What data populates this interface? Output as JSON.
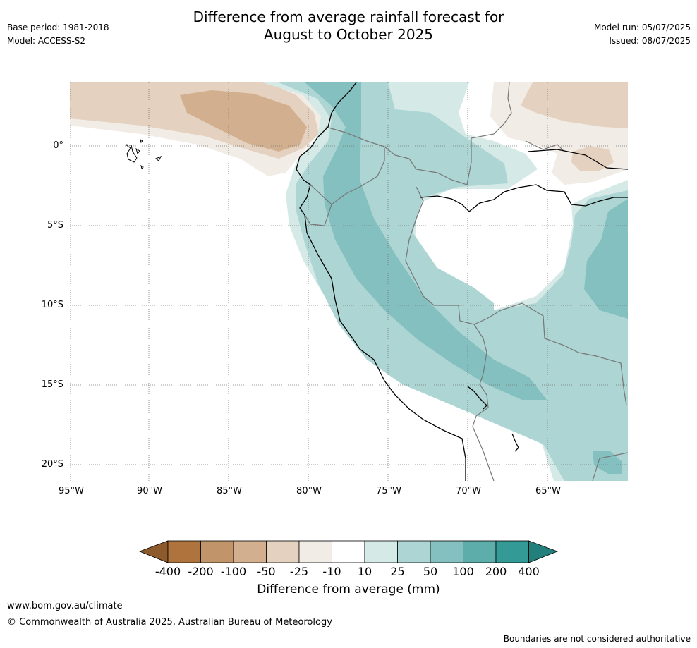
{
  "title": {
    "line1": "Difference from average rainfall forecast for",
    "line2": "August to October 2025"
  },
  "meta": {
    "base_period": "Base period: 1981-2018",
    "model": "Model: ACCESS-S2",
    "model_run": "Model run: 05/07/2025",
    "issued": "Issued: 08/07/2025"
  },
  "map": {
    "lat_labels": [
      "0°",
      "5°S",
      "10°S",
      "15°S",
      "20°S"
    ],
    "lon_labels": [
      "95°W",
      "90°W",
      "85°W",
      "80°W",
      "75°W",
      "70°W",
      "65°W"
    ]
  },
  "colorbar": {
    "ticks": [
      "-400",
      "-200",
      "-100",
      "-50",
      "-25",
      "-10",
      "10",
      "25",
      "50",
      "100",
      "200",
      "400"
    ],
    "colors": [
      "#8c5a2b",
      "#af743e",
      "#c29469",
      "#d2b08f",
      "#e4d1bf",
      "#f1ece6",
      "#ffffff",
      "#d5e9e7",
      "#acd5d3",
      "#84c0bf",
      "#5dadab",
      "#349a96",
      "#237f7c"
    ],
    "title": "Difference from average (mm)"
  },
  "footer": {
    "website": "www.bom.gov.au/climate",
    "copyright": "© Commonwealth of Australia 2025, Australian Bureau of Meteorology",
    "disclaimer": "Boundaries are not considered authoritative"
  }
}
